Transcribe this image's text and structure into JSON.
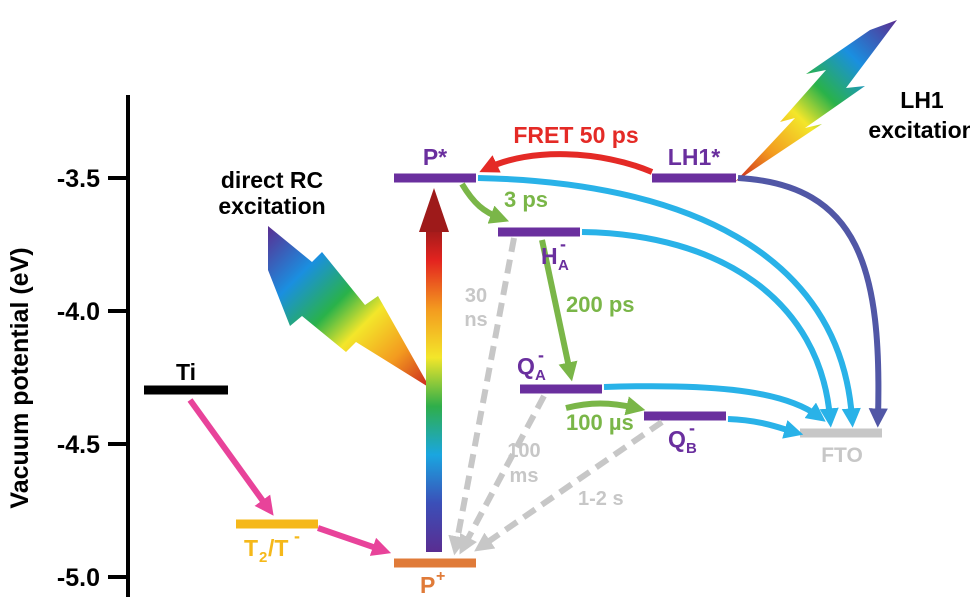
{
  "axis": {
    "label": "Vacuum potential (eV)",
    "ticks": [
      "-3.5",
      "-4.0",
      "-4.5",
      "-5.0"
    ]
  },
  "levels": {
    "p_star": "P*",
    "lh1_star": "LH1*",
    "ha_main": "H",
    "ha_sub": "A",
    "ha_sup": "-",
    "qa_main": "Q",
    "qa_sub": "A",
    "qa_sup": "-",
    "qb_main": "Q",
    "qb_sub": "B",
    "qb_sup": "-",
    "fto": "FTO",
    "ti": "Ti",
    "t2_main": "T",
    "t2_sub": "2",
    "t2_rest": "/T",
    "t2_sup": "-",
    "p_plus_main": "P",
    "p_plus_sup": "+"
  },
  "rates": {
    "fret": "FRET 50 ps",
    "ps3": "3 ps",
    "ps200": "200 ps",
    "us100": "100 µs",
    "ns30_a": "30",
    "ns30_b": "ns",
    "ms100_a": "100",
    "ms100_b": "ms",
    "s12": "1-2 s"
  },
  "annotations": {
    "direct_a": "direct RC",
    "direct_b": "excitation",
    "lh1_a": "LH1",
    "lh1_b": "excitation"
  },
  "colors": {
    "purple": "#6a2f9e",
    "green": "#7ab648",
    "cyan": "#29b2e8",
    "red": "#e42a26",
    "grey": "#c7c7c7",
    "pink": "#e8439a",
    "yellow": "#f5b81a",
    "orange": "#e07b39",
    "navy": "#5157a6"
  }
}
